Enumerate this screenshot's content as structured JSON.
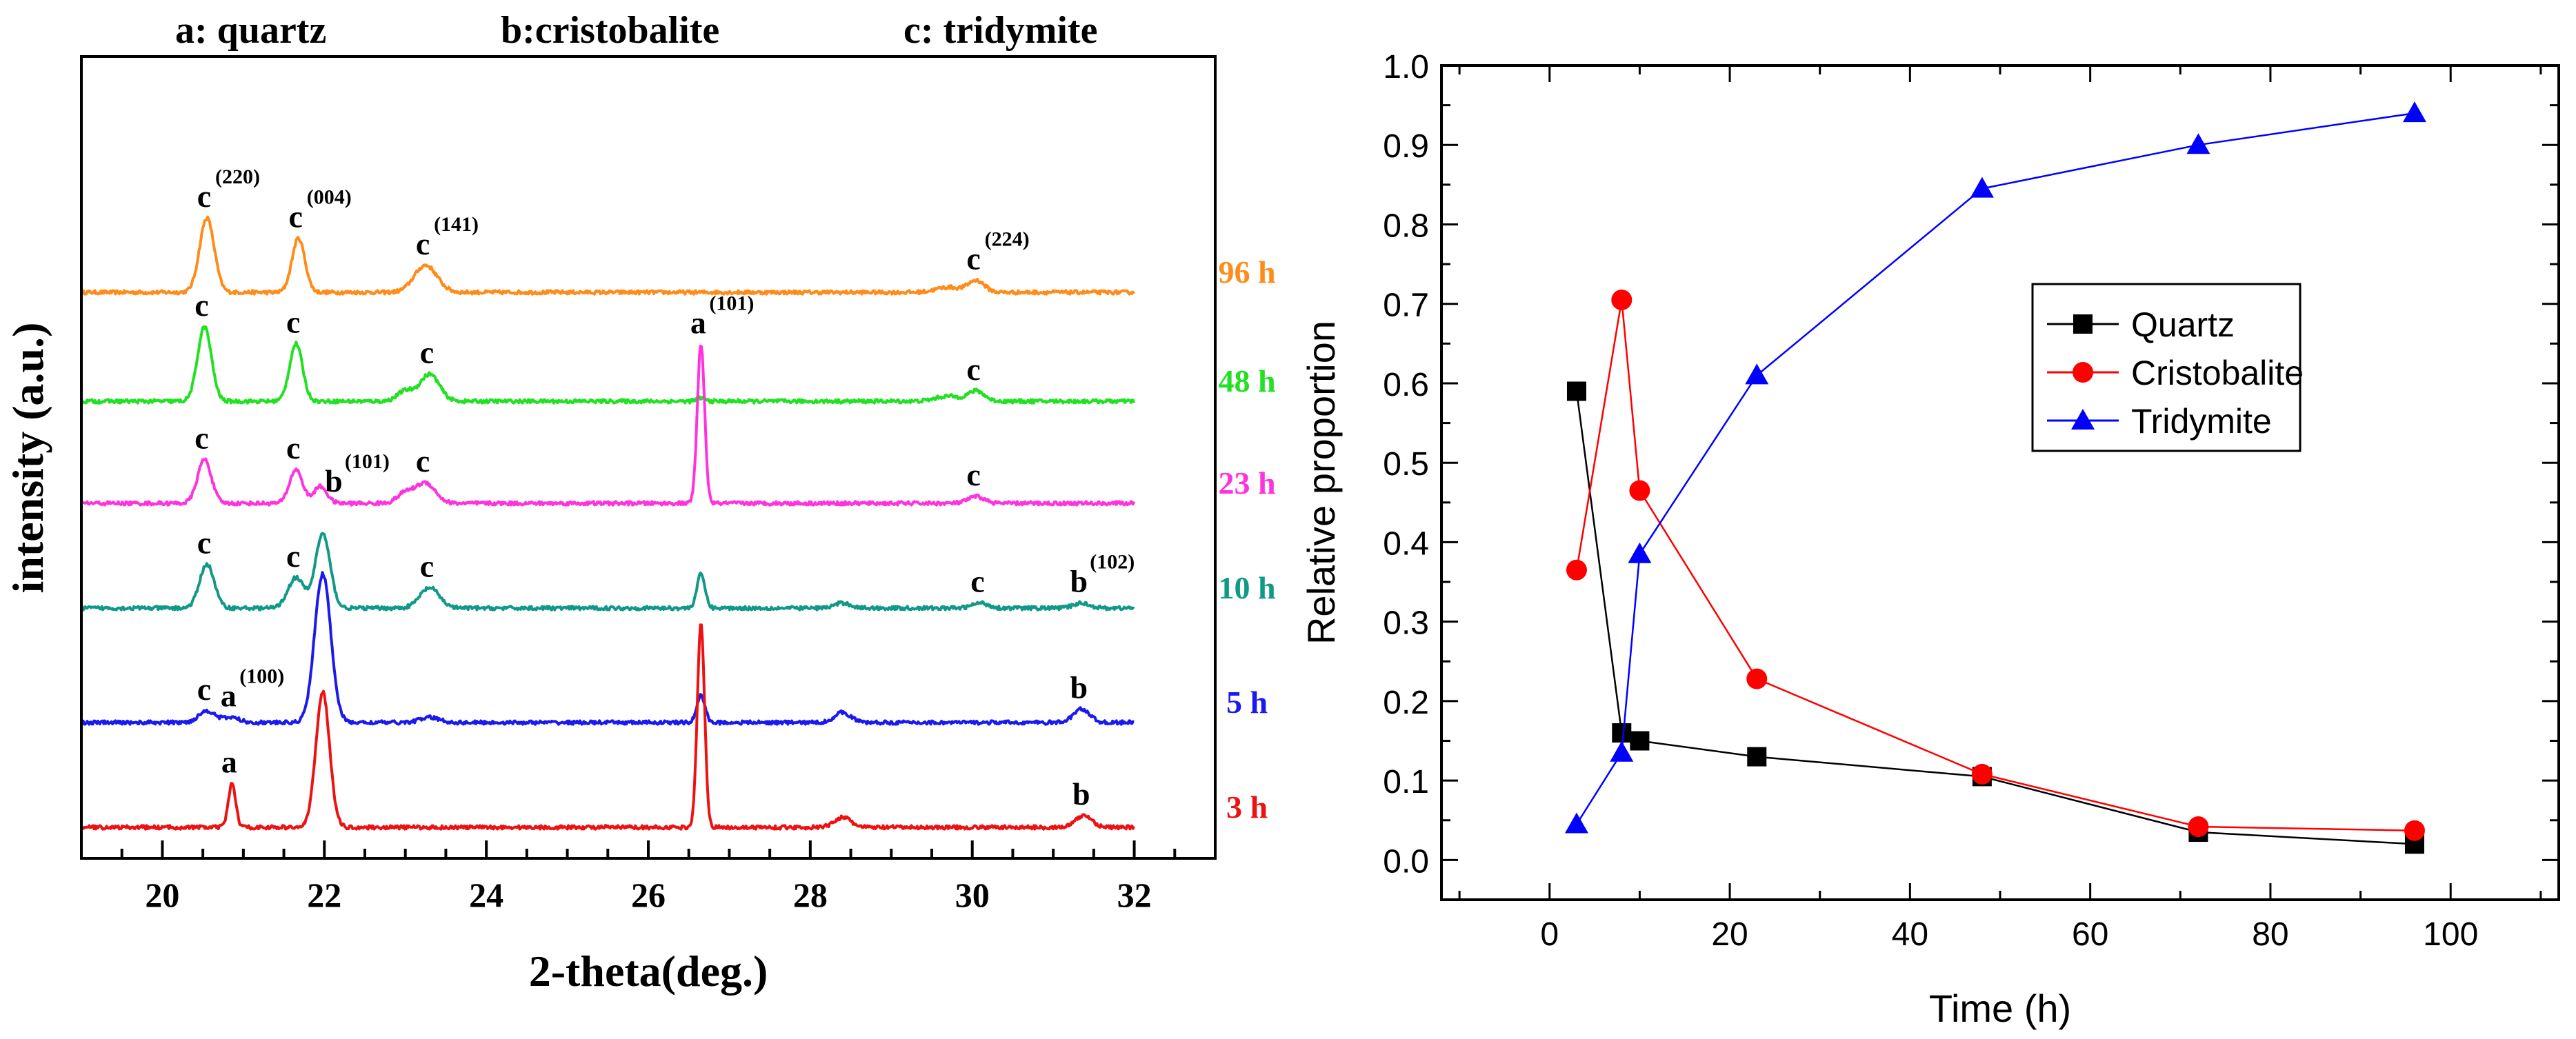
{
  "chart_data": [
    {
      "type": "line",
      "title": "",
      "header_labels": [
        "a: quartz",
        "b:cristobalite",
        "c: tridymite"
      ],
      "xlabel": "2-theta(deg.)",
      "ylabel": "intensity (a.u.)",
      "xlim": [
        19,
        33
      ],
      "xticks": [
        20,
        22,
        24,
        26,
        28,
        30,
        32
      ],
      "series": [
        {
          "name": "96 h",
          "color": "#ff8c1a",
          "baseline": 0,
          "peaks": [
            [
              20.55,
              22,
              0.09
            ],
            [
              21.68,
              16,
              0.08
            ],
            [
              23.25,
              8,
              0.14
            ],
            [
              29.7,
              1.5,
              0.15
            ],
            [
              30.05,
              3.5,
              0.1
            ]
          ]
        },
        {
          "name": "48 h",
          "color": "#22e022",
          "baseline": 0,
          "peaks": [
            [
              20.52,
              22,
              0.085
            ],
            [
              21.65,
              17,
              0.08
            ],
            [
              23.0,
              3,
              0.1
            ],
            [
              23.3,
              8,
              0.12
            ],
            [
              26.65,
              1,
              0.05
            ],
            [
              29.7,
              1.5,
              0.15
            ],
            [
              30.05,
              3,
              0.1
            ]
          ]
        },
        {
          "name": "23 h",
          "color": "#ff33dd",
          "baseline": 0,
          "peaks": [
            [
              20.52,
              13,
              0.085
            ],
            [
              21.65,
              10,
              0.08
            ],
            [
              21.95,
              5,
              0.08
            ],
            [
              23.0,
              3,
              0.1
            ],
            [
              23.25,
              6,
              0.12
            ],
            [
              26.65,
              47,
              0.045
            ],
            [
              30.05,
              2,
              0.1
            ]
          ]
        },
        {
          "name": "10 h",
          "color": "#119988",
          "baseline": 0,
          "peaks": [
            [
              20.55,
              13,
              0.09
            ],
            [
              21.65,
              9,
              0.1
            ],
            [
              21.98,
              22,
              0.09
            ],
            [
              23.3,
              6,
              0.12
            ],
            [
              26.65,
              10,
              0.05
            ],
            [
              28.4,
              1.5,
              0.1
            ],
            [
              30.1,
              1.5,
              0.1
            ],
            [
              31.35,
              1.5,
              0.1
            ]
          ]
        },
        {
          "name": "5 h",
          "color": "#1a1aee",
          "baseline": 0,
          "peaks": [
            [
              20.55,
              3.5,
              0.1
            ],
            [
              20.85,
              1.5,
              0.1
            ],
            [
              21.98,
              44,
              0.1
            ],
            [
              23.3,
              1.5,
              0.12
            ],
            [
              26.65,
              8,
              0.05
            ],
            [
              28.4,
              3,
              0.1
            ],
            [
              31.35,
              4,
              0.1
            ]
          ]
        },
        {
          "name": "3 h",
          "color": "#ee1111",
          "baseline": 0,
          "peaks": [
            [
              20.86,
              13,
              0.045
            ],
            [
              21.98,
              40,
              0.085
            ],
            [
              26.65,
              60,
              0.045
            ],
            [
              28.4,
              3,
              0.1
            ],
            [
              31.38,
              3.5,
              0.1
            ]
          ]
        }
      ],
      "annotations": [
        {
          "series": "96 h",
          "x": 20.55,
          "label": "c",
          "sup": "(220)"
        },
        {
          "series": "96 h",
          "x": 21.68,
          "label": "c",
          "sup": "(004)"
        },
        {
          "series": "96 h",
          "x": 23.25,
          "label": "c",
          "sup": "(141)"
        },
        {
          "series": "96 h",
          "x": 30.05,
          "label": "c",
          "sup": "(224)"
        },
        {
          "series": "48 h",
          "x": 20.52,
          "label": "c",
          "sup": ""
        },
        {
          "series": "48 h",
          "x": 21.65,
          "label": "c",
          "sup": ""
        },
        {
          "series": "48 h",
          "x": 23.3,
          "label": "c",
          "sup": ""
        },
        {
          "series": "48 h",
          "x": 30.05,
          "label": "c",
          "sup": ""
        },
        {
          "series": "23 h",
          "x": 20.52,
          "label": "c",
          "sup": ""
        },
        {
          "series": "23 h",
          "x": 21.65,
          "label": "c",
          "sup": ""
        },
        {
          "series": "23 h",
          "x": 22.15,
          "label": "b",
          "sup": "(101)"
        },
        {
          "series": "23 h",
          "x": 23.25,
          "label": "c",
          "sup": ""
        },
        {
          "series": "23 h",
          "x": 26.65,
          "label": "a",
          "sup": "(101)"
        },
        {
          "series": "23 h",
          "x": 30.05,
          "label": "c",
          "sup": ""
        },
        {
          "series": "10 h",
          "x": 20.55,
          "label": "c",
          "sup": ""
        },
        {
          "series": "10 h",
          "x": 21.65,
          "label": "c",
          "sup": ""
        },
        {
          "series": "10 h",
          "x": 23.3,
          "label": "c",
          "sup": ""
        },
        {
          "series": "10 h",
          "x": 30.1,
          "label": "c",
          "sup": ""
        },
        {
          "series": "10 h",
          "x": 31.35,
          "label": "b",
          "sup": "(102)"
        },
        {
          "series": "5 h",
          "x": 20.55,
          "label": "c",
          "sup": ""
        },
        {
          "series": "5 h",
          "x": 20.85,
          "label": "a",
          "sup": "(100)"
        },
        {
          "series": "5 h",
          "x": 31.35,
          "label": "b",
          "sup": ""
        },
        {
          "series": "3 h",
          "x": 20.86,
          "label": "a",
          "sup": ""
        },
        {
          "series": "3 h",
          "x": 31.38,
          "label": "b",
          "sup": ""
        }
      ]
    },
    {
      "type": "line",
      "title": "",
      "xlabel": "Time (h)",
      "ylabel": "Relative proportion",
      "xlim": [
        -12,
        112
      ],
      "ylim": [
        -0.05,
        1.0
      ],
      "xticks": [
        0,
        20,
        40,
        60,
        80,
        100
      ],
      "yticks": [
        0.0,
        0.1,
        0.2,
        0.3,
        0.4,
        0.5,
        0.6,
        0.7,
        0.8,
        0.9,
        1.0
      ],
      "x": [
        3,
        8,
        10,
        23,
        48,
        72,
        96
      ],
      "series": [
        {
          "name": "Quartz",
          "color": "#000000",
          "marker": "square",
          "values": [
            0.59,
            0.16,
            0.15,
            0.13,
            0.105,
            0.035,
            0.02
          ]
        },
        {
          "name": "Cristobalite",
          "color": "#ff0000",
          "marker": "circle",
          "values": [
            0.365,
            0.705,
            0.465,
            0.228,
            0.108,
            0.042,
            0.037
          ]
        },
        {
          "name": "Tridymite",
          "color": "#0000ff",
          "marker": "triangle",
          "values": [
            0.045,
            0.135,
            0.385,
            0.61,
            0.845,
            0.9,
            0.94
          ]
        }
      ],
      "legend": "center-right"
    }
  ]
}
